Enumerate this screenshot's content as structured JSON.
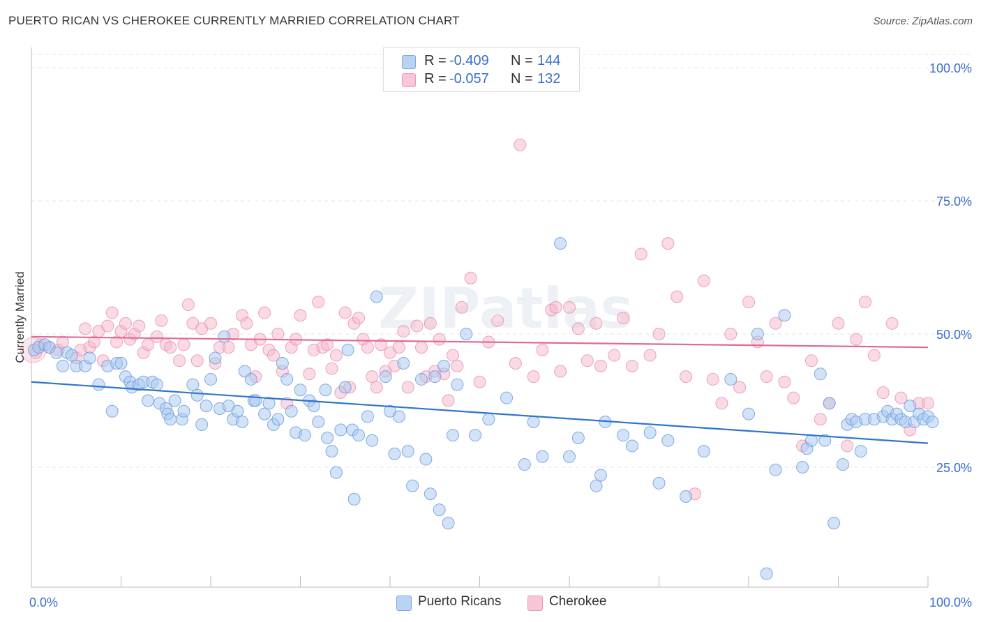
{
  "title": "PUERTO RICAN VS CHEROKEE CURRENTLY MARRIED CORRELATION CHART",
  "source": "Source: ZipAtlas.com",
  "watermark": "ZIPatlas",
  "legend": {
    "row1": {
      "r_label": "R =",
      "r_value": "-0.409",
      "n_label": "N =",
      "n_value": "144"
    },
    "row2": {
      "r_label": "R =",
      "r_value": "-0.057",
      "n_label": "N =",
      "n_value": "132"
    }
  },
  "bottom_legend": {
    "series1": "Puerto Ricans",
    "series2": "Cherokee"
  },
  "colors": {
    "blue_fill": "#a8c8f0",
    "blue_stroke": "#6b9be0",
    "blue_line": "#2f74d0",
    "pink_fill": "#f5b8cc",
    "pink_stroke": "#e893b0",
    "pink_line": "#e06a95",
    "tick_text": "#3a6fc9",
    "grid": "#e3e3e3"
  },
  "chart_data": {
    "type": "scatter",
    "title": "PUERTO RICAN VS CHEROKEE CURRENTLY MARRIED CORRELATION CHART",
    "xlabel": "",
    "ylabel": "Currently Married",
    "xlim": [
      0,
      100
    ],
    "ylim": [
      0,
      105
    ],
    "x_tick_labels": [
      "0.0%",
      "100.0%"
    ],
    "y_ticks": [
      25,
      50,
      75,
      100
    ],
    "y_tick_labels": [
      "25.0%",
      "50.0%",
      "75.0%",
      "100.0%"
    ],
    "grid": true,
    "legend_position": "top-center",
    "series": [
      {
        "name": "Puerto Ricans",
        "r": -0.409,
        "n": 144,
        "trend": {
          "x": [
            0,
            100
          ],
          "y": [
            41,
            29.5
          ]
        },
        "points": [
          [
            0.3,
            47
          ],
          [
            0.8,
            47.5
          ],
          [
            1.5,
            48
          ],
          [
            2,
            47.5
          ],
          [
            2.8,
            46.5
          ],
          [
            3.5,
            44
          ],
          [
            4,
            46.5
          ],
          [
            4.5,
            46
          ],
          [
            5,
            44
          ],
          [
            6,
            44
          ],
          [
            6.5,
            45.5
          ],
          [
            7.5,
            40.5
          ],
          [
            8.5,
            44
          ],
          [
            9,
            35.5
          ],
          [
            9.5,
            44.5
          ],
          [
            10,
            44.5
          ],
          [
            10.5,
            42
          ],
          [
            11,
            41
          ],
          [
            11.2,
            40
          ],
          [
            12,
            40.5
          ],
          [
            12.5,
            41
          ],
          [
            13,
            37.5
          ],
          [
            13.5,
            41
          ],
          [
            14,
            40.5
          ],
          [
            14.3,
            37
          ],
          [
            15,
            36
          ],
          [
            15.2,
            35
          ],
          [
            15.5,
            34
          ],
          [
            16,
            37.5
          ],
          [
            16.8,
            34
          ],
          [
            17,
            35.5
          ],
          [
            18,
            40.5
          ],
          [
            18.5,
            38.5
          ],
          [
            19,
            33
          ],
          [
            19.5,
            36.5
          ],
          [
            20,
            41.5
          ],
          [
            20.5,
            45.5
          ],
          [
            21,
            36
          ],
          [
            21.5,
            49.5
          ],
          [
            22,
            36.5
          ],
          [
            22.5,
            34
          ],
          [
            23,
            35.5
          ],
          [
            23.5,
            33.5
          ],
          [
            23.8,
            43
          ],
          [
            24.5,
            41.5
          ],
          [
            24.8,
            37.5
          ],
          [
            25,
            37.5
          ],
          [
            26,
            35
          ],
          [
            26.5,
            37
          ],
          [
            27,
            33
          ],
          [
            27.5,
            34
          ],
          [
            28,
            44.5
          ],
          [
            28.5,
            41.5
          ],
          [
            29,
            35.5
          ],
          [
            29.5,
            31.5
          ],
          [
            30,
            39.5
          ],
          [
            30.5,
            31
          ],
          [
            31,
            37.5
          ],
          [
            31.5,
            36.5
          ],
          [
            32,
            33.5
          ],
          [
            32.8,
            39.5
          ],
          [
            33,
            30.5
          ],
          [
            33.5,
            28
          ],
          [
            34,
            24
          ],
          [
            34.5,
            32
          ],
          [
            35,
            40
          ],
          [
            35.3,
            47
          ],
          [
            35.8,
            32
          ],
          [
            36,
            19
          ],
          [
            36.5,
            31
          ],
          [
            37.5,
            34.5
          ],
          [
            38,
            30
          ],
          [
            38.5,
            57
          ],
          [
            39.5,
            42
          ],
          [
            40,
            35.5
          ],
          [
            40.5,
            27.5
          ],
          [
            41,
            34.5
          ],
          [
            41.5,
            44.5
          ],
          [
            42,
            28
          ],
          [
            42.5,
            21.5
          ],
          [
            43.5,
            41.5
          ],
          [
            44,
            26.5
          ],
          [
            44.5,
            20
          ],
          [
            45,
            42
          ],
          [
            45.5,
            17
          ],
          [
            46,
            44
          ],
          [
            46.5,
            14.5
          ],
          [
            47,
            31
          ],
          [
            47.5,
            40.5
          ],
          [
            48.5,
            50
          ],
          [
            49.5,
            31
          ],
          [
            51,
            34
          ],
          [
            53,
            38
          ],
          [
            55,
            25.5
          ],
          [
            56,
            33.5
          ],
          [
            57,
            27
          ],
          [
            59,
            67
          ],
          [
            60,
            27
          ],
          [
            61,
            30.5
          ],
          [
            63,
            21.5
          ],
          [
            63.5,
            23.5
          ],
          [
            64,
            33.5
          ],
          [
            66,
            31
          ],
          [
            67,
            29
          ],
          [
            69,
            31.5
          ],
          [
            70,
            22
          ],
          [
            71,
            30
          ],
          [
            73,
            19.5
          ],
          [
            75,
            28
          ],
          [
            78,
            41.5
          ],
          [
            80,
            35
          ],
          [
            81,
            50
          ],
          [
            82,
            5
          ],
          [
            83,
            24.5
          ],
          [
            84,
            53.5
          ],
          [
            86,
            25
          ],
          [
            86.5,
            28.5
          ],
          [
            87,
            30
          ],
          [
            88,
            42.5
          ],
          [
            88.5,
            30
          ],
          [
            89,
            37
          ],
          [
            89.5,
            14.5
          ],
          [
            90.5,
            25.5
          ],
          [
            91,
            33
          ],
          [
            91.5,
            34
          ],
          [
            92,
            33.5
          ],
          [
            92.5,
            28
          ],
          [
            93,
            34
          ],
          [
            94,
            34
          ],
          [
            95,
            34.5
          ],
          [
            95.5,
            35.5
          ],
          [
            96,
            34
          ],
          [
            96.5,
            35
          ],
          [
            97,
            34
          ],
          [
            97.5,
            33.5
          ],
          [
            98,
            36.5
          ],
          [
            98.5,
            33.5
          ],
          [
            99,
            35
          ],
          [
            99.5,
            34
          ],
          [
            100,
            34.5
          ],
          [
            100.5,
            33.5
          ]
        ]
      },
      {
        "name": "Cherokee",
        "r": -0.057,
        "n": 132,
        "trend": {
          "x": [
            0,
            100
          ],
          "y": [
            49.5,
            47.5
          ]
        },
        "points": [
          [
            0.5,
            46.5
          ],
          [
            1,
            48
          ],
          [
            2,
            47.5
          ],
          [
            3,
            47
          ],
          [
            3.5,
            48.5
          ],
          [
            5,
            45.5
          ],
          [
            5.5,
            47
          ],
          [
            6,
            51
          ],
          [
            6.5,
            47.5
          ],
          [
            7,
            48.5
          ],
          [
            7.5,
            50.5
          ],
          [
            8,
            45
          ],
          [
            8.5,
            51.5
          ],
          [
            9,
            54
          ],
          [
            9.5,
            48.5
          ],
          [
            10,
            50.5
          ],
          [
            10.5,
            52
          ],
          [
            11,
            49
          ],
          [
            11.5,
            50
          ],
          [
            12,
            51.5
          ],
          [
            12.5,
            46.5
          ],
          [
            13,
            48
          ],
          [
            14,
            49.5
          ],
          [
            14.5,
            52.5
          ],
          [
            15,
            48
          ],
          [
            15.5,
            47.5
          ],
          [
            16.5,
            45
          ],
          [
            17,
            48
          ],
          [
            17.5,
            55.5
          ],
          [
            18,
            52
          ],
          [
            18.5,
            45
          ],
          [
            19,
            51
          ],
          [
            20,
            52
          ],
          [
            20.5,
            44.5
          ],
          [
            21,
            47.5
          ],
          [
            22,
            47.5
          ],
          [
            22.5,
            50
          ],
          [
            23.5,
            53.5
          ],
          [
            24,
            52
          ],
          [
            24.5,
            48
          ],
          [
            25,
            42
          ],
          [
            25.5,
            49
          ],
          [
            26,
            54
          ],
          [
            26.5,
            47
          ],
          [
            27,
            46
          ],
          [
            27.5,
            50
          ],
          [
            28,
            43
          ],
          [
            28.5,
            37
          ],
          [
            29,
            47.5
          ],
          [
            29.5,
            49
          ],
          [
            30,
            53.5
          ],
          [
            31,
            42.5
          ],
          [
            31.5,
            47
          ],
          [
            32,
            56
          ],
          [
            32.5,
            47.5
          ],
          [
            33,
            48
          ],
          [
            33.5,
            43.5
          ],
          [
            34,
            46
          ],
          [
            34.5,
            39
          ],
          [
            35,
            54
          ],
          [
            35.5,
            40
          ],
          [
            36,
            52
          ],
          [
            36.5,
            53
          ],
          [
            37,
            49
          ],
          [
            37.5,
            47.5
          ],
          [
            38,
            42
          ],
          [
            38.5,
            40
          ],
          [
            39,
            48
          ],
          [
            39.5,
            43
          ],
          [
            40,
            46.5
          ],
          [
            40.5,
            44
          ],
          [
            41,
            47.5
          ],
          [
            41.5,
            50.5
          ],
          [
            42,
            40
          ],
          [
            43,
            51.5
          ],
          [
            43.5,
            47.5
          ],
          [
            44,
            42
          ],
          [
            44.5,
            52
          ],
          [
            45,
            43
          ],
          [
            45.5,
            49
          ],
          [
            46,
            42.5
          ],
          [
            46.5,
            37.5
          ],
          [
            47,
            46
          ],
          [
            47.5,
            44
          ],
          [
            48,
            55
          ],
          [
            49,
            60.5
          ],
          [
            50,
            41
          ],
          [
            51,
            48.5
          ],
          [
            52,
            52.5
          ],
          [
            54,
            44.5
          ],
          [
            54.5,
            85.5
          ],
          [
            56,
            42
          ],
          [
            57,
            47
          ],
          [
            58,
            54.5
          ],
          [
            58.5,
            55
          ],
          [
            59,
            43
          ],
          [
            60,
            55
          ],
          [
            61,
            51
          ],
          [
            62,
            45
          ],
          [
            63,
            52
          ],
          [
            63.5,
            44
          ],
          [
            65,
            46
          ],
          [
            66,
            53
          ],
          [
            67,
            44
          ],
          [
            68,
            65
          ],
          [
            69,
            46
          ],
          [
            70,
            50
          ],
          [
            71,
            67
          ],
          [
            72,
            57
          ],
          [
            73,
            42
          ],
          [
            74,
            20
          ],
          [
            75,
            60
          ],
          [
            76,
            41.5
          ],
          [
            77,
            37
          ],
          [
            78,
            50
          ],
          [
            79,
            40
          ],
          [
            80,
            56
          ],
          [
            81,
            48.5
          ],
          [
            82,
            42
          ],
          [
            83,
            52
          ],
          [
            84,
            41
          ],
          [
            85,
            38
          ],
          [
            86,
            29
          ],
          [
            87,
            45
          ],
          [
            88,
            34
          ],
          [
            89,
            37
          ],
          [
            90,
            52
          ],
          [
            91,
            29
          ],
          [
            92,
            49
          ],
          [
            93,
            56
          ],
          [
            94,
            46
          ],
          [
            95,
            39
          ],
          [
            96,
            52
          ],
          [
            97,
            38
          ],
          [
            98,
            32
          ],
          [
            99,
            37
          ],
          [
            100,
            37
          ]
        ]
      }
    ]
  }
}
